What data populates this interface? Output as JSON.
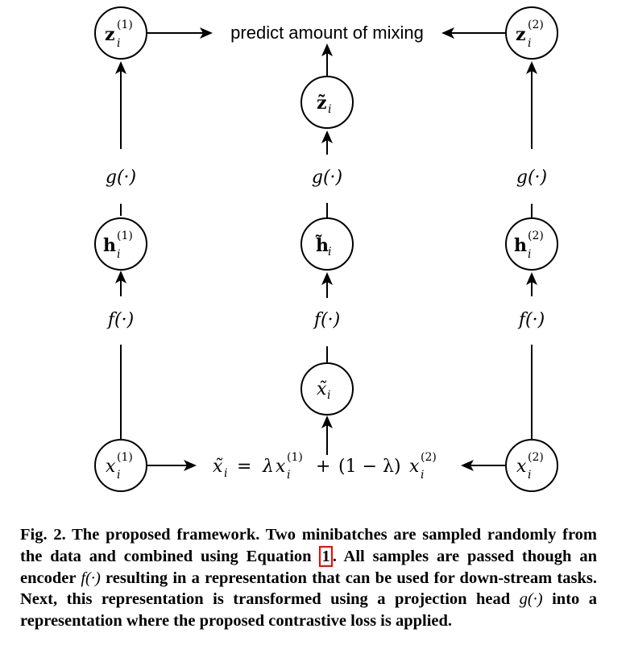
{
  "nodes": {
    "z1": {
      "base": "z",
      "sub": "i",
      "sup": "(1)"
    },
    "z2": {
      "base": "z",
      "sub": "i",
      "sup": "(2)"
    },
    "zt": {
      "base": "z̃",
      "sub": "i"
    },
    "h1": {
      "base": "h",
      "sub": "i",
      "sup": "(1)"
    },
    "h2": {
      "base": "h",
      "sub": "i",
      "sup": "(2)"
    },
    "ht": {
      "base": "h̃",
      "sub": "i"
    },
    "xt": {
      "base": "x̃",
      "sub": "i"
    },
    "x1": {
      "base": "x",
      "sub": "i",
      "sup": "(1)"
    },
    "x2": {
      "base": "x",
      "sub": "i",
      "sup": "(2)"
    }
  },
  "labels": {
    "predict": "predict amount of mixing",
    "g": "g(·)",
    "f": "f(·)"
  },
  "equation": {
    "lhs_base": "x̃",
    "lhs_sub": "i",
    "eq": "=",
    "lambda": "λ",
    "x1_base": "x",
    "x1_sub": "i",
    "x1_sup": "(1)",
    "plus": "+",
    "one_minus": "(1 − λ)",
    "x2_base": "x",
    "x2_sub": "i",
    "x2_sup": "(2)"
  },
  "caption": {
    "part1": "Fig. 2. The proposed framework. Two minibatches are sampled randomly from the data and combined using Equation ",
    "ref": "1",
    "part2": ". All samples are passed though an encoder ",
    "f": "f(·)",
    "part3": " resulting in a representation that can be used for down-stream tasks. Next, this representation is transformed using a projection head ",
    "g": "g(·)",
    "part4": " into a representation where the proposed contrastive loss is applied."
  }
}
